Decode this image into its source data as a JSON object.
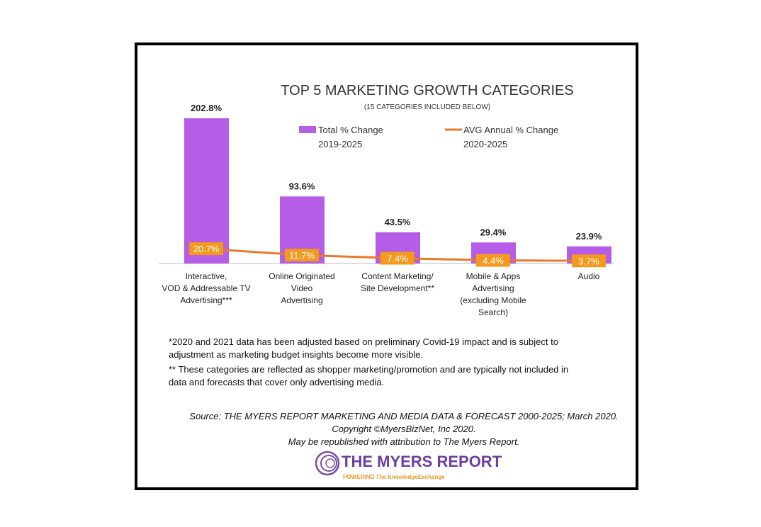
{
  "chart_data": {
    "type": "bar",
    "title": "TOP 5 MARKETING GROWTH CATEGORIES",
    "subtitle": "(15 CATEGORIES INCLUDED BELOW)",
    "categories": [
      [
        "Interactive,",
        "VOD & Addressable TV",
        "Advertising***"
      ],
      [
        "Online Originated",
        "Video",
        "Advertising"
      ],
      [
        "Content Marketing/",
        "Site Development**"
      ],
      [
        "Mobile & Apps",
        "Advertising",
        "(excluding Mobile",
        "Search)"
      ],
      [
        "Audio"
      ]
    ],
    "series": [
      {
        "name": "Total % Change 2019-2025",
        "legend": [
          "Total % Change",
          "2019-2025"
        ],
        "type": "bar",
        "values": [
          202.8,
          93.6,
          43.5,
          29.4,
          23.9
        ],
        "labels": [
          "202.8%",
          "93.6%",
          "43.5%",
          "29.4%",
          "23.9%"
        ],
        "color": "#b55de6"
      },
      {
        "name": "AVG Annual % Change 2020-2025",
        "legend": [
          "AVG Annual % Change",
          "2020-2025"
        ],
        "type": "line",
        "values": [
          20.7,
          11.7,
          7.4,
          4.4,
          3.7
        ],
        "labels": [
          "20.7%",
          "11.7%",
          "7.4%",
          "4.4%",
          "3.7%"
        ],
        "color": "#e8792b"
      }
    ],
    "legend_position": "top-right",
    "grid": false
  },
  "notes": [
    "*2020 and 2021 data has been adjusted based on preliminary Covid-19 impact and is subject to",
    "adjustment as marketing budget insights become more visible.",
    "** These categories are reflected as shopper marketing/promotion and are typically not included in",
    "data and forecasts that cover only advertising media."
  ],
  "source": [
    "Source: THE MYERS REPORT MARKETING AND MEDIA DATA & FORECAST 2000-2025; March 2020.",
    "Copyright ©MyersBizNet, Inc 2020.",
    "May be republished with attribution to The Myers Report."
  ],
  "logo": {
    "name": "THE MYERS REPORT",
    "tagline": "POWERING The KnowledgeExchange"
  }
}
